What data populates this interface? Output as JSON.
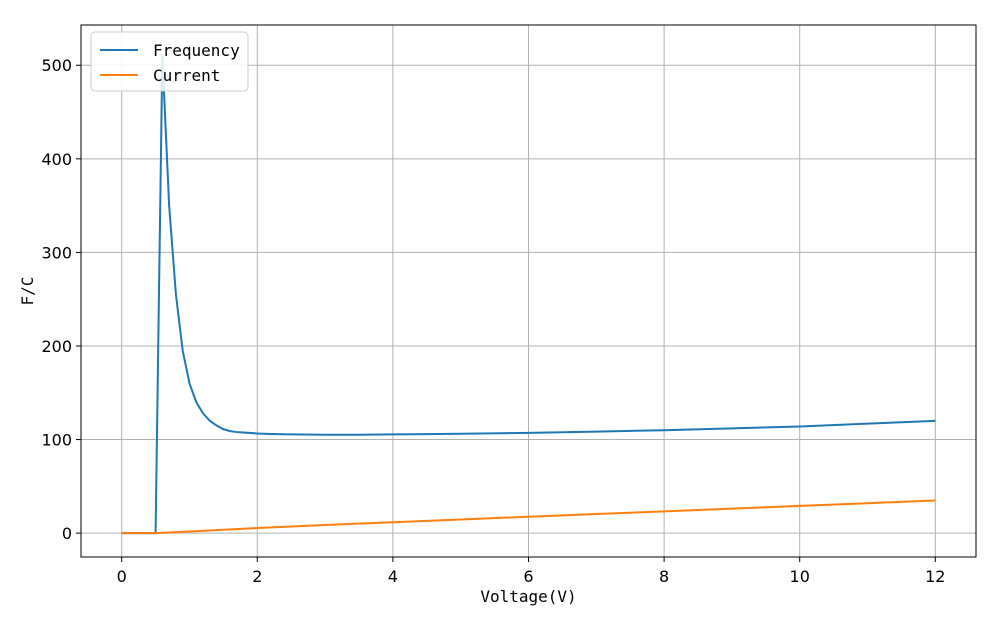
{
  "chart_data": {
    "type": "line",
    "xlabel": "Voltage(V)",
    "ylabel": "F/C",
    "xlim": [
      -0.6,
      12.6
    ],
    "ylim": [
      -25.5,
      543
    ],
    "xticks": [
      0,
      2,
      4,
      6,
      8,
      10,
      12
    ],
    "yticks": [
      0,
      100,
      200,
      300,
      400,
      500
    ],
    "grid": true,
    "legend_position": "top-left",
    "series": [
      {
        "name": "Frequency",
        "color": "#1f77b4",
        "x": [
          0,
          0.1,
          0.2,
          0.3,
          0.4,
          0.5,
          0.6,
          0.7,
          0.8,
          0.9,
          1.0,
          1.1,
          1.2,
          1.3,
          1.4,
          1.5,
          1.6,
          1.7,
          1.8,
          2.0,
          2.2,
          2.5,
          3.0,
          3.5,
          4.0,
          4.5,
          5.0,
          6.0,
          7.0,
          8.0,
          9.0,
          10.0,
          11.0,
          12.0
        ],
        "y": [
          0,
          0,
          0,
          0,
          0,
          0,
          510,
          350,
          255,
          195,
          160,
          140,
          128,
          120,
          115,
          111,
          109,
          108,
          107.5,
          106.5,
          106,
          105.5,
          105.2,
          105.2,
          105.5,
          105.8,
          106.2,
          107.2,
          108.5,
          110,
          112,
          114,
          117,
          120
        ]
      },
      {
        "name": "Current",
        "color": "#ff7f0e",
        "x": [
          0,
          0.5,
          1,
          2,
          3,
          4,
          5,
          6,
          7,
          8,
          9,
          10,
          11,
          12
        ],
        "y": [
          0,
          0,
          1.8,
          5.5,
          8.7,
          11.7,
          14.6,
          17.5,
          20.4,
          23.3,
          26.2,
          29.1,
          32.0,
          34.9
        ]
      }
    ]
  }
}
